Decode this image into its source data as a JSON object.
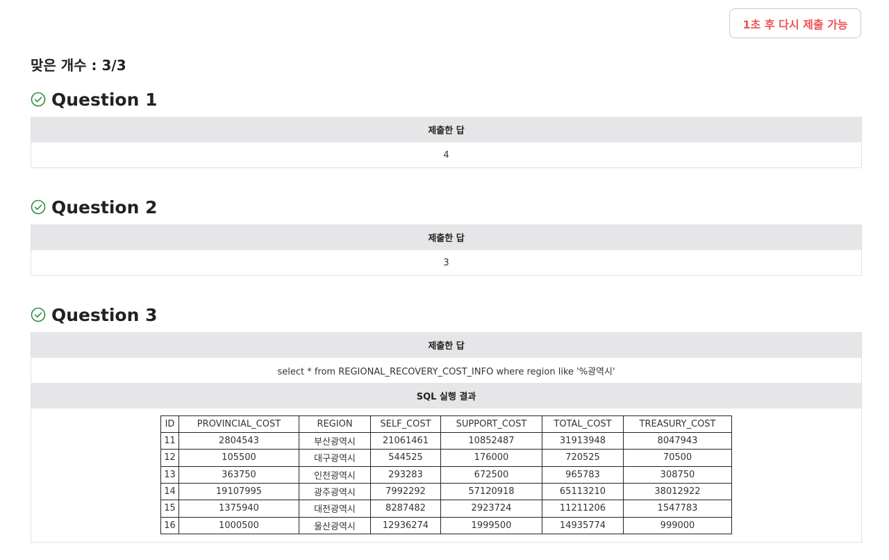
{
  "resubmit_label": "1초 후 다시 제출 가능",
  "score": "맞은 개수 : 3/3",
  "colors": {
    "accent_red": "#f05252",
    "check_green": "#2a8f3a",
    "header_gray": "#e6e6e9"
  },
  "questions": [
    {
      "title": "Question 1",
      "head": "제출한 답",
      "answer": "4"
    },
    {
      "title": "Question 2",
      "head": "제출한 답",
      "answer": "3"
    },
    {
      "title": "Question 3",
      "head": "제출한 답",
      "answer": "select * from REGIONAL_RECOVERY_COST_INFO where region like '%광역시'",
      "result_head": "SQL 실행 결과"
    }
  ],
  "result_table": {
    "columns": [
      "ID",
      "PROVINCIAL_COST",
      "REGION",
      "SELF_COST",
      "SUPPORT_COST",
      "TOTAL_COST",
      "TREASURY_COST"
    ],
    "rows": [
      [
        "11",
        "2804543",
        "부산광역시",
        "21061461",
        "10852487",
        "31913948",
        "8047943"
      ],
      [
        "12",
        "105500",
        "대구광역시",
        "544525",
        "176000",
        "720525",
        "70500"
      ],
      [
        "13",
        "363750",
        "인천광역시",
        "293283",
        "672500",
        "965783",
        "308750"
      ],
      [
        "14",
        "19107995",
        "광주광역시",
        "7992292",
        "57120918",
        "65113210",
        "38012922"
      ],
      [
        "15",
        "1375940",
        "대전광역시",
        "8287482",
        "2923724",
        "11211206",
        "1547783"
      ],
      [
        "16",
        "1000500",
        "울산광역시",
        "12936274",
        "1999500",
        "14935774",
        "999000"
      ]
    ]
  }
}
